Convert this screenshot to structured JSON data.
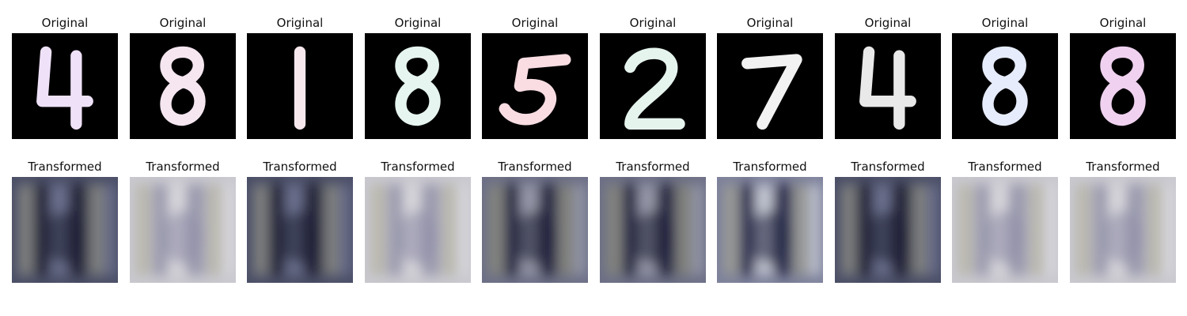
{
  "figure": {
    "rows": [
      {
        "title": "Original",
        "items": [
          {
            "digit": "4",
            "color": "#efe2f8"
          },
          {
            "digit": "8",
            "color": "#f5e6f0"
          },
          {
            "digit": "1",
            "color": "#f7e8ee"
          },
          {
            "digit": "8",
            "color": "#e6f5ef"
          },
          {
            "digit": "5",
            "color": "#f9dde3"
          },
          {
            "digit": "2",
            "color": "#e6f4ee"
          },
          {
            "digit": "7",
            "color": "#f2f2f2"
          },
          {
            "digit": "4",
            "color": "#e9e9e9"
          },
          {
            "digit": "8",
            "color": "#e6ecfb"
          },
          {
            "digit": "8",
            "color": "#f0d2f0"
          }
        ]
      },
      {
        "title": "Transformed",
        "items": [
          {
            "tone": "dark"
          },
          {
            "tone": "light"
          },
          {
            "tone": "dark"
          },
          {
            "tone": "light"
          },
          {
            "tone": "mid"
          },
          {
            "tone": "mid"
          },
          {
            "tone": "bright"
          },
          {
            "tone": "dark"
          },
          {
            "tone": "light"
          },
          {
            "tone": "light"
          }
        ]
      }
    ]
  }
}
